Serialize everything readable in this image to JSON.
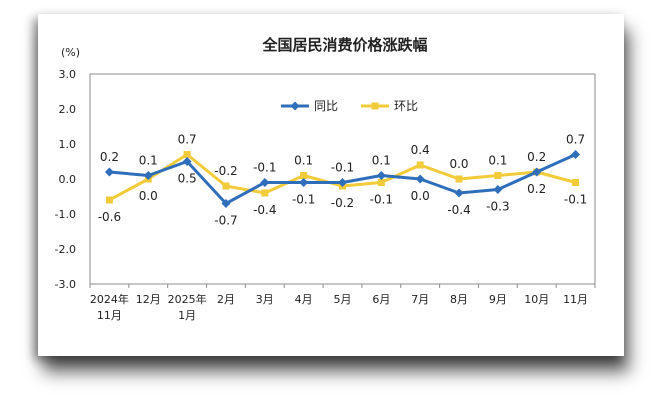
{
  "chart_data": {
    "type": "line",
    "title": "全国居民消费价格涨跌幅",
    "unit_label": "(%)",
    "ylim": [
      -3.0,
      3.0
    ],
    "y_ticks": [
      "3.0",
      "2.0",
      "1.0",
      "0.0",
      "-1.0",
      "-2.0",
      "-3.0"
    ],
    "y_tick_values": [
      3,
      2,
      1,
      0,
      -1,
      -2,
      -3
    ],
    "categories": [
      [
        "2024年",
        "11月"
      ],
      [
        "12月"
      ],
      [
        "2025年",
        "1月"
      ],
      [
        "2月"
      ],
      [
        "3月"
      ],
      [
        "4月"
      ],
      [
        "5月"
      ],
      [
        "6月"
      ],
      [
        "7月"
      ],
      [
        "8月"
      ],
      [
        "9月"
      ],
      [
        "10月"
      ],
      [
        "11月"
      ]
    ],
    "grid": false,
    "legend_position": "top-center",
    "series": [
      {
        "name": "同比",
        "color": "#2F6EBA",
        "marker": "diamond",
        "values": [
          0.2,
          0.1,
          0.5,
          -0.7,
          -0.1,
          -0.1,
          -0.1,
          0.1,
          0.0,
          -0.4,
          -0.3,
          0.2,
          0.7
        ],
        "labels": [
          "0.2",
          "0.1",
          "0.5",
          "-0.7",
          "-0.1",
          "-0.1",
          "-0.1",
          "0.1",
          "0.0",
          "-0.4",
          "-0.3",
          "0.2",
          "0.7"
        ]
      },
      {
        "name": "环比",
        "color": "#F2CB3A",
        "marker": "square",
        "values": [
          -0.6,
          0.0,
          0.7,
          -0.2,
          -0.4,
          0.1,
          -0.2,
          -0.1,
          0.4,
          0.0,
          0.1,
          0.2,
          -0.1
        ],
        "labels": [
          "-0.6",
          "0.0",
          "0.7",
          "-0.2",
          "-0.4",
          "0.1",
          "-0.2",
          "-0.1",
          "0.4",
          "0.0",
          "0.1",
          "0.2",
          "-0.1"
        ]
      }
    ]
  }
}
